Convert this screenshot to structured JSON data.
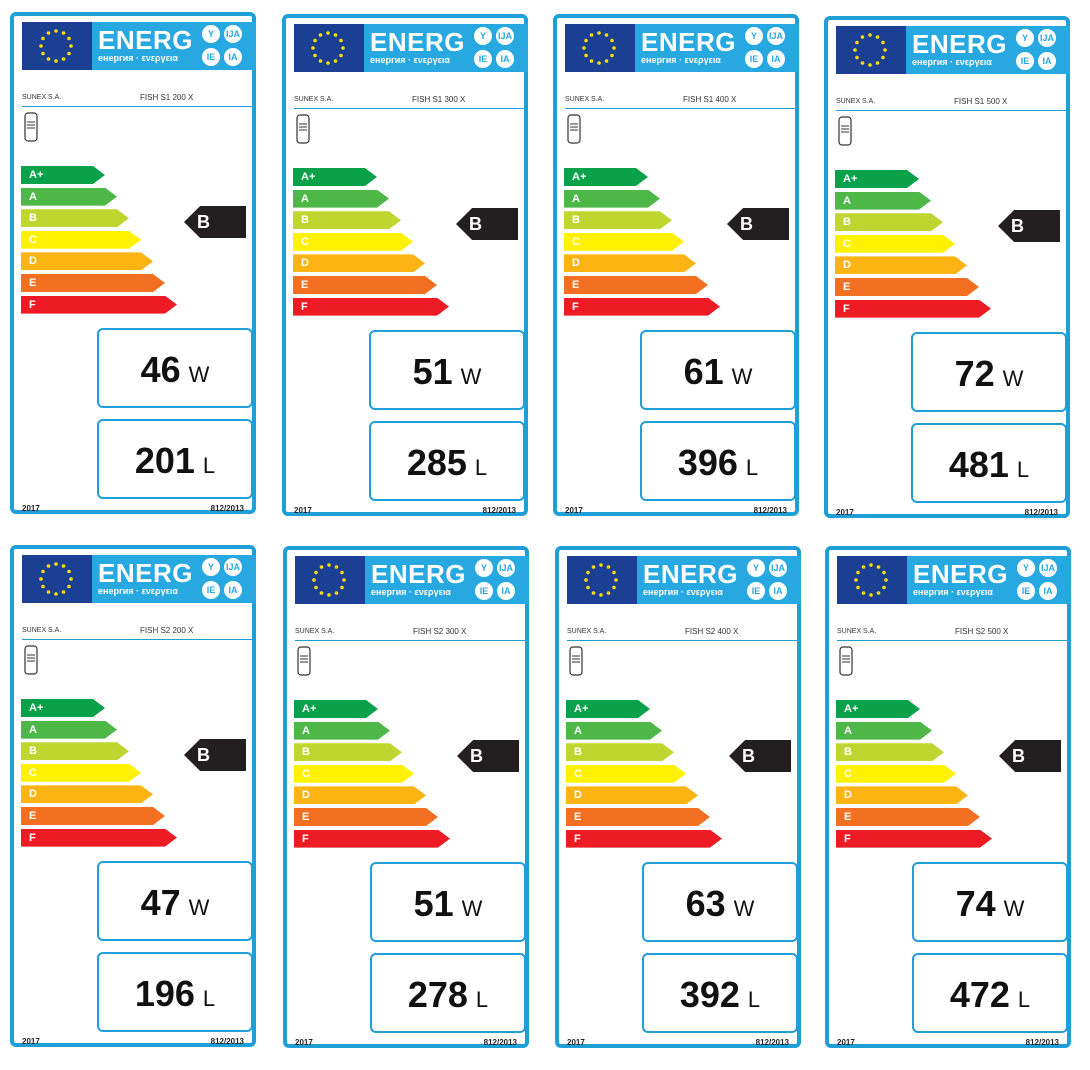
{
  "header": {
    "energy_word": "ENERG",
    "energy_subtitle": "енергия · ενεργεια",
    "lang_codes": [
      "Y",
      "IJA",
      "IE",
      "IA"
    ]
  },
  "colors": {
    "border": "#1e9fd8",
    "eu_blue": "#1b3f93",
    "header_blue": "#28a8e0",
    "rating_arrow": "#231f20",
    "classes": [
      "#0aa14b",
      "#4db848",
      "#bfd630",
      "#fff200",
      "#fcb414",
      "#f36f21",
      "#ed1c24"
    ]
  },
  "scale_classes": [
    "A+",
    "A",
    "B",
    "C",
    "D",
    "E",
    "F"
  ],
  "icons": {
    "flag": "eu-flag-icon",
    "product": "water-tank-icon"
  },
  "labels": [
    {
      "supplier": "SUNEX S.A.",
      "model": "FISH S1 200 X",
      "rating": "B",
      "heat_loss": "46",
      "heat_loss_unit": "W",
      "volume": "201",
      "volume_unit": "L",
      "year": "2017",
      "regulation": "812/2013"
    },
    {
      "supplier": "SUNEX S.A.",
      "model": "FISH S1 300 X",
      "rating": "B",
      "heat_loss": "51",
      "heat_loss_unit": "W",
      "volume": "285",
      "volume_unit": "L",
      "year": "2017",
      "regulation": "812/2013"
    },
    {
      "supplier": "SUNEX S.A.",
      "model": "FISH S1 400 X",
      "rating": "B",
      "heat_loss": "61",
      "heat_loss_unit": "W",
      "volume": "396",
      "volume_unit": "L",
      "year": "2017",
      "regulation": "812/2013"
    },
    {
      "supplier": "SUNEX S.A.",
      "model": "FISH S1 500 X",
      "rating": "B",
      "heat_loss": "72",
      "heat_loss_unit": "W",
      "volume": "481",
      "volume_unit": "L",
      "year": "2017",
      "regulation": "812/2013"
    },
    {
      "supplier": "SUNEX S.A.",
      "model": "FISH S2 200 X",
      "rating": "B",
      "heat_loss": "47",
      "heat_loss_unit": "W",
      "volume": "196",
      "volume_unit": "L",
      "year": "2017",
      "regulation": "812/2013"
    },
    {
      "supplier": "SUNEX S.A.",
      "model": "FISH S2 300 X",
      "rating": "B",
      "heat_loss": "51",
      "heat_loss_unit": "W",
      "volume": "278",
      "volume_unit": "L",
      "year": "2017",
      "regulation": "812/2013"
    },
    {
      "supplier": "SUNEX S.A.",
      "model": "FISH S2 400 X",
      "rating": "B",
      "heat_loss": "63",
      "heat_loss_unit": "W",
      "volume": "392",
      "volume_unit": "L",
      "year": "2017",
      "regulation": "812/2013"
    },
    {
      "supplier": "SUNEX S.A.",
      "model": "FISH S2 500 X",
      "rating": "B",
      "heat_loss": "74",
      "heat_loss_unit": "W",
      "volume": "472",
      "volume_unit": "L",
      "year": "2017",
      "regulation": "812/2013"
    }
  ]
}
